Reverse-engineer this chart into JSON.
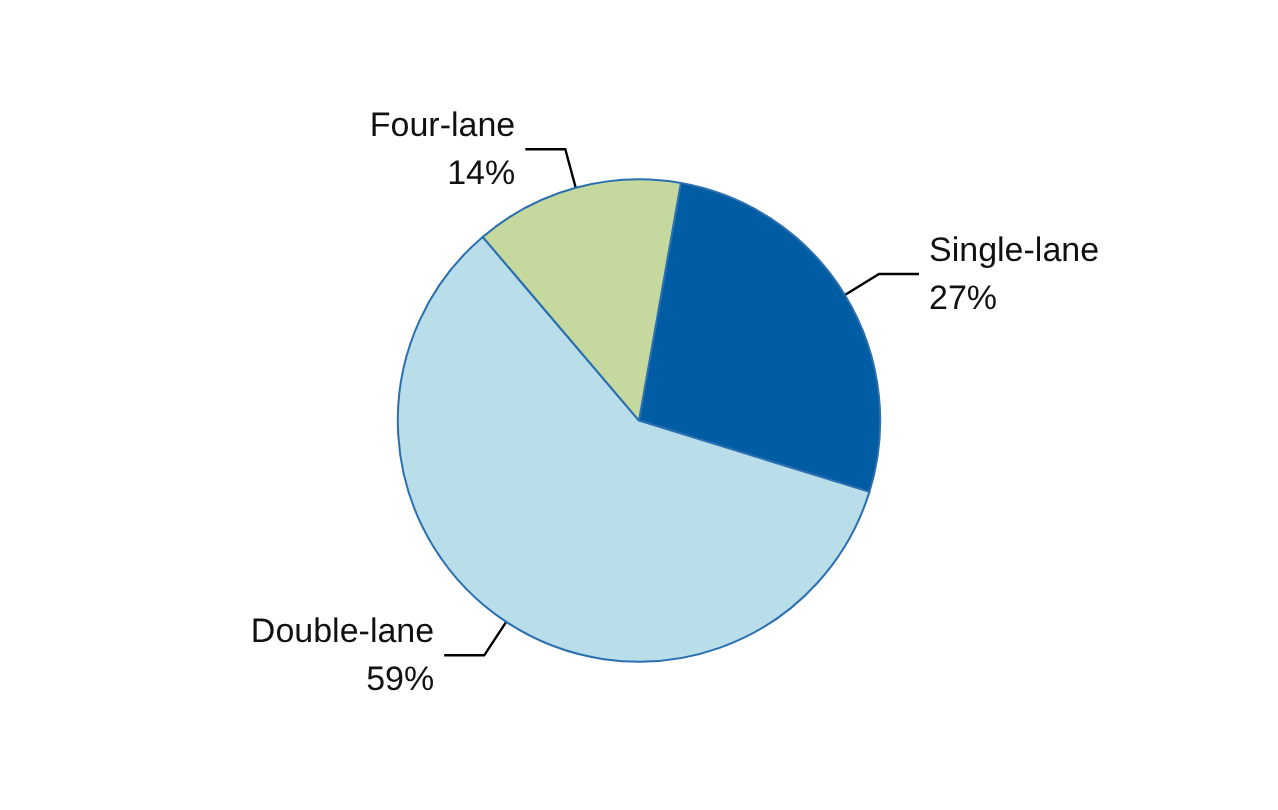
{
  "chart_data": {
    "type": "pie",
    "categories": [
      "Single-lane",
      "Double-lane",
      "Four-lane"
    ],
    "values": [
      27,
      59,
      14
    ],
    "value_labels": [
      "27%",
      "59%",
      "14%"
    ],
    "colors": [
      "#005ca3",
      "#b9dde9",
      "#c5d89d"
    ]
  }
}
